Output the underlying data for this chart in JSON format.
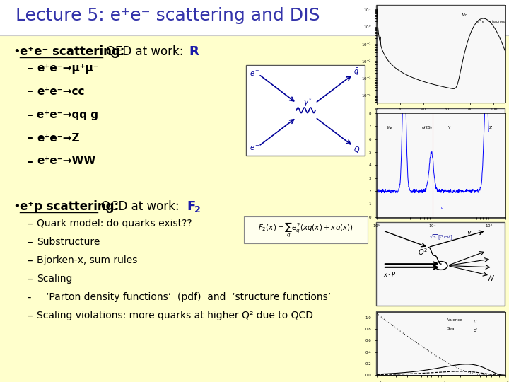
{
  "bg_color": "#ffffff",
  "content_bg": "#ffffcc",
  "title": "Lecture 5: e⁺e⁻ scattering and DIS",
  "title_color": "#3333aa",
  "title_fontsize": 18,
  "bullet1_label": "e⁺e⁻ scattering:",
  "bullet1_qed": "QED at work:",
  "bullet1_bold": "R",
  "sub_items_1": [
    "e⁺e⁻→μ⁺μ⁻",
    "e⁺e⁻→cc",
    "e⁺e⁻→qq g",
    "e⁺e⁻→Z",
    "e⁺e⁻→WW"
  ],
  "bullet2_label": "e⁺p scattering:",
  "bullet2_qcd": "QCD at work:",
  "bullet2_bold": "F",
  "sub_items_2": [
    "Quark model: do quarks exist??",
    "Substructure",
    "Bjorken-x, sum rules",
    "Scaling",
    "   ‘Parton density functions’  (pdf)  and  ‘structure functions’",
    "Scaling violations: more quarks at higher Q² due to QCD"
  ],
  "sub2_dashes": [
    "–",
    "–",
    "–",
    "–",
    "-",
    "–"
  ],
  "text_color": "#000000"
}
